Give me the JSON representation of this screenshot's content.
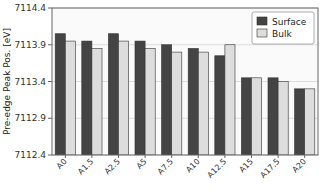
{
  "chart_data": {
    "type": "bar",
    "categories": [
      "A0",
      "A1.5",
      "A2.5",
      "A5",
      "A7.5",
      "A10",
      "A12.5",
      "A15",
      "A17.5",
      "A20"
    ],
    "series": [
      {
        "name": "Surface",
        "color": "#444444",
        "values": [
          7114.05,
          7113.95,
          7114.05,
          7113.95,
          7113.9,
          7113.85,
          7113.75,
          7113.45,
          7113.45,
          7113.3
        ]
      },
      {
        "name": "Bulk",
        "color": "#dddddd",
        "values": [
          7113.95,
          7113.85,
          7113.95,
          7113.85,
          7113.8,
          7113.8,
          7113.9,
          7113.45,
          7113.4,
          7113.3
        ]
      }
    ],
    "ylabel": "Pre-edge Peak Pos. [eV]",
    "ylim": [
      7112.4,
      7114.4
    ],
    "yticks": [
      7112.4,
      7112.9,
      7113.4,
      7113.9,
      7114.4
    ],
    "grid": true,
    "legend": "upper right"
  }
}
